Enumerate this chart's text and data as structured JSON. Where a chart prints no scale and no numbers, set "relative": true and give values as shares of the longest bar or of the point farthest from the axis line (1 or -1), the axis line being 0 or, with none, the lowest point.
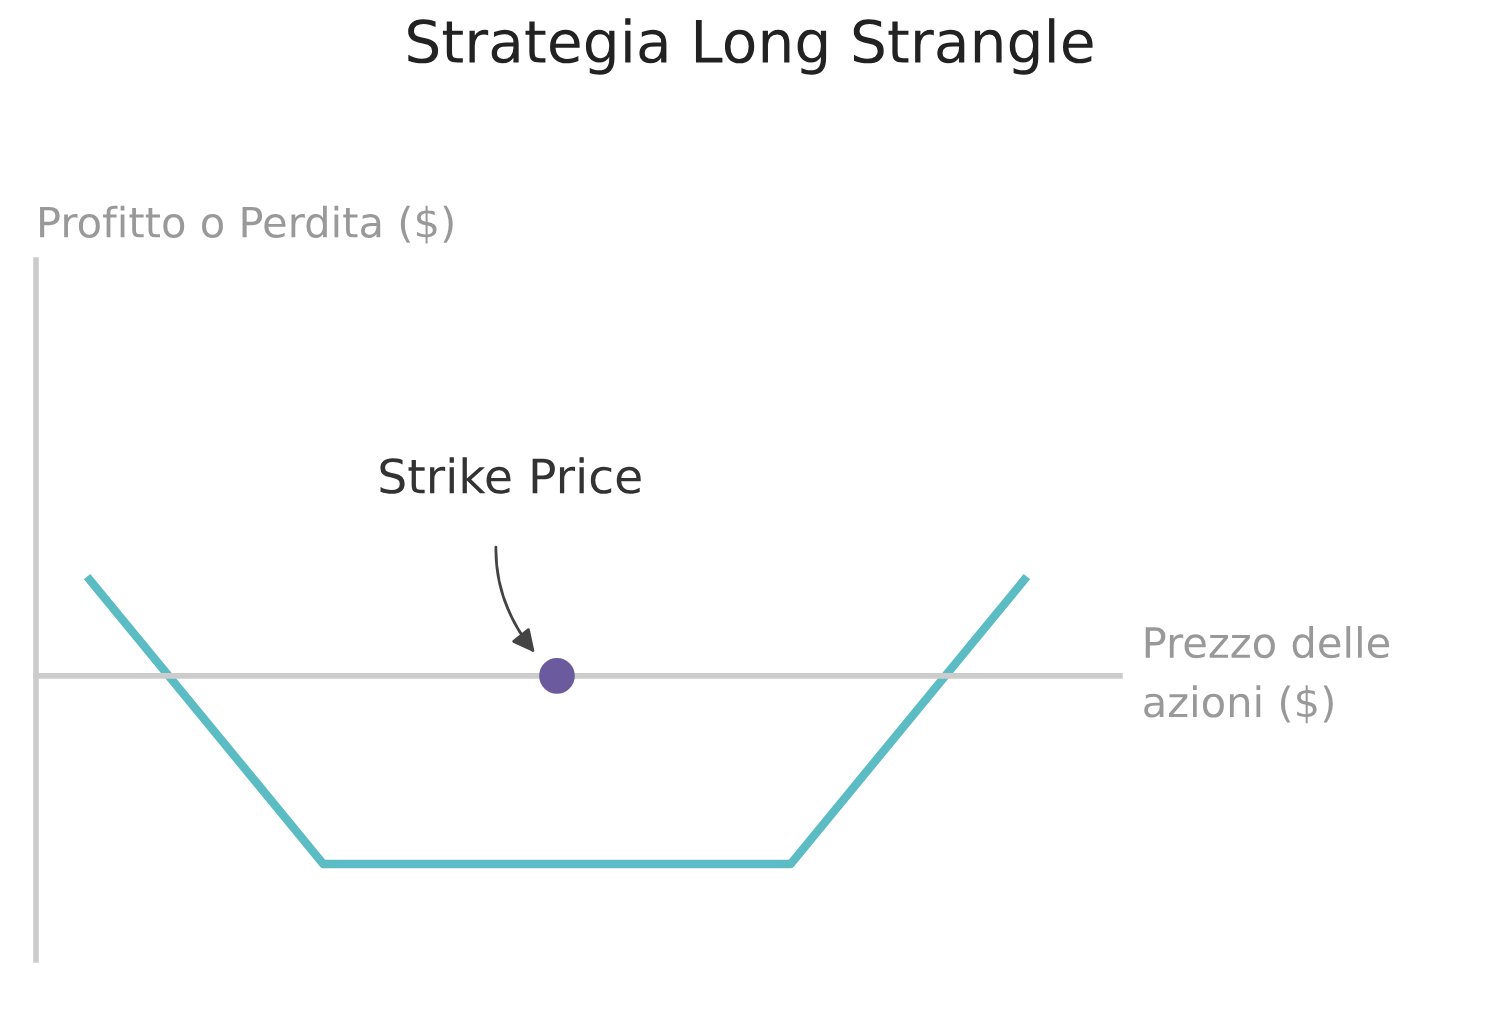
{
  "chart_data": {
    "type": "line",
    "title": "Strategia Long Strangle",
    "xlabel": "Prezzo delle\nazioni ($)",
    "relative": true,
    "categories": [
      null,
      null,
      null,
      null,
      null
    ],
    "series": [
      {
        "color": "#5bbcc4",
        "values": [
          0.51,
          -1,
          -1,
          -1,
          0.51
        ]
      }
    ],
    "annotations": [
      "Profitto o Perdita ($)",
      "Strike Price"
    ]
  }
}
